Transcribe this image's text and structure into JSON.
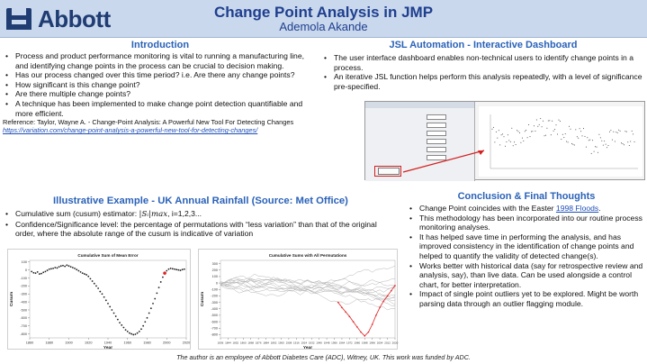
{
  "header": {
    "logo_text": "Abbott",
    "title": "Change Point Analysis in JMP",
    "author": "Ademola Akande",
    "brand_color": "#1f3c73",
    "band_color": "#c9d8ec"
  },
  "intro": {
    "heading": "Introduction",
    "bullets": [
      "Process and product performance monitoring is vital to running a manufacturing line, and identifying change points in the process can be crucial to decision making.",
      "Has our process changed over this time period? i.e. Are there any change points?",
      "How significant is this change point?",
      "Are there multiple change points?",
      "A technique has been implemented to make change point detection quantifiable and more efficient."
    ],
    "reference": "Reference: Taylor, Wayne A. - Change-Point Analysis: A Powerful New Tool For Detecting Changes",
    "reference_link": "https://variation.com/change-point-analysis-a-powerful-new-tool-for-detecting-changes/"
  },
  "jsl": {
    "heading": "JSL Automation - Interactive Dashboard",
    "bullets": [
      "The user interface dashboard enables non-technical users to identify change points in a process.",
      "An iterative JSL function helps perform this analysis repeatedly, with a level of significance pre-specified."
    ]
  },
  "illustrative": {
    "heading": "Illustrative Example - UK Annual Rainfall (Source: Met Office)",
    "bullet_1_prefix": "Cumulative sum (cusum) estimator:",
    "bullet_1_formula": "|Sᵢ|max",
    "bullet_1_suffix": ", i=1,2,3...",
    "bullet_2": "Confidence/Significance level: the percentage of permutations with “less variation” than that of the original order, where the absolute range of the cusum is indicative of variation"
  },
  "conclusion": {
    "heading": "Conclusion & Final Thoughts",
    "bullet_1_prefix": "Change Point coincides with the Easter",
    "bullet_1_link": "1998 Floods",
    "bullet_1_suffix": ".",
    "bullets": [
      "This methodology has been incorporated into our routine process monitoring analyses.",
      "It has helped save time in performing the analysis, and has improved consistency in the identification of change points and helped to quantify the validity of detected change(s).",
      "Works better with historical data (say for retrospective review and analysis, say), than live data. Can be used alongside a control chart, for better interpretation.",
      "Impact of single point outliers yet to be explored. Might be worth parsing data through an outlier flagging module."
    ]
  },
  "footer": "The author is an employee of Abbott Diabetes Care (ADC), Witney, UK. This work was funded by ADC.",
  "accent_color": "#2a62b8",
  "chart_data": [
    {
      "type": "scatter",
      "title": "Cumulative Sum of Mean Error",
      "xlabel": "Year",
      "ylabel": "Cusum",
      "xlim": [
        1860,
        2020
      ],
      "xticks": [
        "1860",
        "1880",
        "1900",
        "1920",
        "1940",
        "1960",
        "1980",
        "2000",
        "2020"
      ],
      "ylim": [
        -850,
        120
      ],
      "yticks": [
        "100",
        "0",
        "-100",
        "-200",
        "-300",
        "-400",
        "-500",
        "-600",
        "-700",
        "-800"
      ],
      "series": [
        {
          "x": [
            1862,
            1864,
            1866,
            1868,
            1870,
            1872,
            1874,
            1876,
            1878,
            1880,
            1882,
            1884,
            1886,
            1888,
            1890,
            1892,
            1894,
            1896,
            1898,
            1900,
            1902,
            1904,
            1906,
            1908,
            1910,
            1912,
            1914,
            1916,
            1918,
            1920,
            1922,
            1924,
            1926,
            1928,
            1930,
            1932,
            1934,
            1936,
            1938,
            1940,
            1942,
            1944,
            1946,
            1948,
            1950,
            1952,
            1954,
            1956,
            1958,
            1960,
            1962,
            1964,
            1966,
            1968,
            1970,
            1972,
            1974,
            1976,
            1978,
            1980,
            1982,
            1984,
            1986,
            1988,
            1990,
            1992,
            1994,
            1996,
            1998,
            2000,
            2002,
            2004,
            2006,
            2008,
            2010,
            2012,
            2014,
            2016,
            2018
          ],
          "y": [
            -20,
            -35,
            -40,
            -25,
            -50,
            -45,
            -30,
            -20,
            -5,
            10,
            15,
            20,
            30,
            25,
            40,
            50,
            55,
            45,
            60,
            50,
            40,
            30,
            20,
            5,
            -10,
            -25,
            -40,
            -50,
            -60,
            -80,
            -110,
            -140,
            -170,
            -200,
            -230,
            -270,
            -300,
            -340,
            -380,
            -420,
            -460,
            -500,
            -540,
            -580,
            -620,
            -660,
            -690,
            -720,
            -750,
            -770,
            -790,
            -800,
            -810,
            -805,
            -790,
            -770,
            -740,
            -700,
            -650,
            -600,
            -540,
            -480,
            -420,
            -360,
            -290,
            -220,
            -150,
            -90,
            -40,
            -10,
            10,
            20,
            15,
            10,
            5,
            0,
            -5,
            5,
            10
          ]
        }
      ],
      "highlight_point": {
        "x": 1998,
        "y": -40
      }
    },
    {
      "type": "line",
      "title": "Cumulative Sums with All Permutations",
      "xlabel": "Year",
      "ylabel": "Cusum",
      "xlim": [
        1836,
        2020
      ],
      "xticks": [
        "1836",
        "1844",
        "1852",
        "1860",
        "1868",
        "1876",
        "1884",
        "1892",
        "1900",
        "1908",
        "1916",
        "1924",
        "1932",
        "1940",
        "1948",
        "1956",
        "1964",
        "1972",
        "1980",
        "1988",
        "1996",
        "2004",
        "2012",
        "2020"
      ],
      "ylim": [
        -850,
        350
      ],
      "yticks": [
        "300",
        "200",
        "100",
        "0",
        "-100",
        "-200",
        "-300",
        "-400",
        "-500",
        "-600",
        "-700",
        "-800"
      ],
      "series": [
        {
          "name": "Original order",
          "color": "#e02020",
          "x": [
            1960,
            1964,
            1968,
            1972,
            1976,
            1980,
            1984,
            1988,
            1992,
            1996,
            2000,
            2004,
            2008,
            2012,
            2016,
            2020
          ],
          "y": [
            -300,
            -380,
            -450,
            -520,
            -600,
            -680,
            -760,
            -820,
            -760,
            -640,
            -500,
            -380,
            -280,
            -200,
            -120,
            -40
          ]
        }
      ],
      "permutation_count": 12,
      "permutation_color": "#b5b5b5"
    }
  ]
}
